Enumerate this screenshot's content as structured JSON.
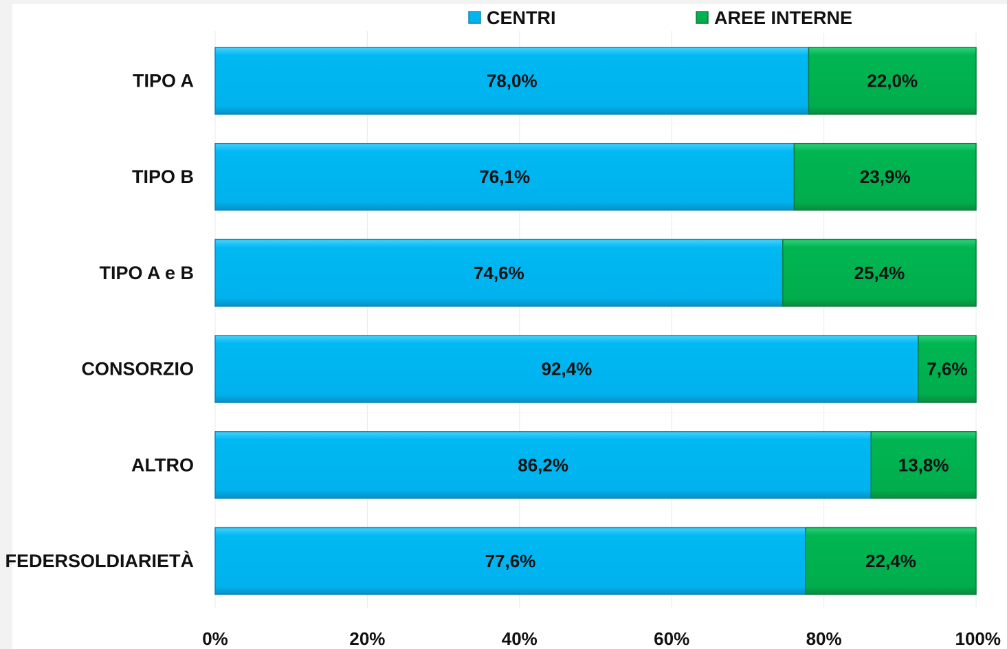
{
  "chart_data": {
    "type": "bar",
    "orientation": "horizontal",
    "stacked": true,
    "categories": [
      "TIPO A",
      "TIPO B",
      "TIPO A e B",
      "CONSORZIO",
      "ALTRO",
      "FEDERSOLDIARIETÀ"
    ],
    "series": [
      {
        "name": "CENTRI",
        "color": "#00b4f0",
        "values": [
          78.0,
          76.1,
          74.6,
          92.4,
          86.2,
          77.6
        ],
        "labels": [
          "78,0%",
          "76,1%",
          "74,6%",
          "92,4%",
          "86,2%",
          "77,6%"
        ]
      },
      {
        "name": "AREE INTERNE",
        "color": "#00b050",
        "values": [
          22.0,
          23.9,
          25.4,
          7.6,
          13.8,
          22.4
        ],
        "labels": [
          "22,0%",
          "23,9%",
          "25,4%",
          "7,6%",
          "13,8%",
          "22,4%"
        ]
      }
    ],
    "xlim": [
      0,
      100
    ],
    "x_ticks": [
      "0%",
      "20%",
      "40%",
      "60%",
      "80%",
      "100%"
    ],
    "grid": true,
    "legend_position": "top"
  }
}
